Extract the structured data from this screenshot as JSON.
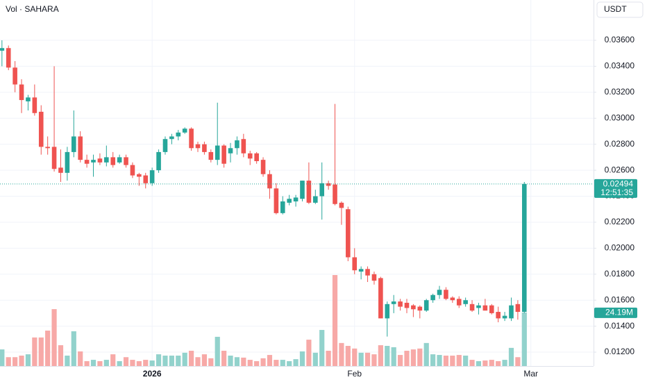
{
  "chart_data": {
    "type": "candlestick",
    "title": "Vol · SAHARA",
    "currency": "USDT",
    "up_color": "#26a69a",
    "down_color": "#ef5350",
    "open": [
      0.0352,
      0.0354,
      0.0339,
      0.0326,
      0.0313,
      0.0316,
      0.0305,
      0.0278,
      0.0278,
      0.0262,
      0.0258,
      0.0274,
      0.0286,
      0.0268,
      0.0266,
      0.0269,
      0.0266,
      0.027,
      0.0266,
      0.027,
      0.0264,
      0.0257,
      0.0256,
      0.025,
      0.026,
      0.0274,
      0.0284,
      0.0286,
      0.0289,
      0.0292,
      0.028,
      0.028,
      0.0274,
      0.0268,
      0.0279,
      0.0273,
      0.0277,
      0.0284,
      0.0273,
      0.0273,
      0.0268,
      0.0257,
      0.0246,
      0.0227,
      0.0235,
      0.0236,
      0.0238,
      0.0252,
      0.0235,
      0.024,
      0.025,
      0.0249,
      0.0235,
      0.023,
      0.0193,
      0.0182,
      0.0184,
      0.018,
      0.0177,
      0.0146,
      0.0157,
      0.0159,
      0.0158,
      0.0156,
      0.0155,
      0.0152,
      0.016,
      0.0164,
      0.0168,
      0.0162,
      0.0161,
      0.0157,
      0.0157,
      0.0154,
      0.0156,
      0.0156,
      0.0151,
      0.0146,
      0.0146,
      0.0157,
      0.0151
    ],
    "high": [
      0.036,
      0.0356,
      0.0344,
      0.033,
      0.0318,
      0.0326,
      0.031,
      0.0286,
      0.034,
      0.0276,
      0.0278,
      0.0306,
      0.029,
      0.0272,
      0.0272,
      0.0273,
      0.0279,
      0.0274,
      0.0272,
      0.0272,
      0.0266,
      0.0258,
      0.0258,
      0.0262,
      0.0276,
      0.0286,
      0.0288,
      0.0291,
      0.0293,
      0.0293,
      0.0282,
      0.0282,
      0.0276,
      0.0312,
      0.028,
      0.0281,
      0.0286,
      0.0288,
      0.0275,
      0.0274,
      0.027,
      0.026,
      0.025,
      0.024,
      0.0241,
      0.0241,
      0.0252,
      0.0266,
      0.0245,
      0.0266,
      0.0252,
      0.0311,
      0.0236,
      0.0232,
      0.02,
      0.0186,
      0.0186,
      0.0182,
      0.0178,
      0.0159,
      0.0164,
      0.0161,
      0.0161,
      0.0157,
      0.0156,
      0.0161,
      0.0165,
      0.0171,
      0.017,
      0.0163,
      0.0163,
      0.0162,
      0.016,
      0.0158,
      0.0161,
      0.0157,
      0.0155,
      0.0151,
      0.0162,
      0.016,
      0.0251
    ],
    "low": [
      0.034,
      0.0337,
      0.032,
      0.0304,
      0.0306,
      0.0302,
      0.0272,
      0.0272,
      0.0259,
      0.0251,
      0.0252,
      0.027,
      0.0266,
      0.0262,
      0.0255,
      0.0264,
      0.0263,
      0.0262,
      0.0265,
      0.0262,
      0.0254,
      0.0248,
      0.0246,
      0.0248,
      0.0258,
      0.0272,
      0.028,
      0.0283,
      0.0288,
      0.0275,
      0.0274,
      0.0272,
      0.0266,
      0.0264,
      0.0262,
      0.0266,
      0.0272,
      0.027,
      0.0264,
      0.0265,
      0.0255,
      0.0238,
      0.0226,
      0.0226,
      0.0233,
      0.0232,
      0.0236,
      0.0234,
      0.0234,
      0.0222,
      0.0245,
      0.0233,
      0.0218,
      0.019,
      0.018,
      0.0176,
      0.0174,
      0.0172,
      0.0146,
      0.0132,
      0.015,
      0.0152,
      0.015,
      0.0147,
      0.0146,
      0.0151,
      0.0158,
      0.0161,
      0.016,
      0.0158,
      0.0154,
      0.0155,
      0.0151,
      0.0149,
      0.0152,
      0.0149,
      0.0143,
      0.0144,
      0.0144,
      0.0145,
      0.015
    ],
    "close": [
      0.0354,
      0.0339,
      0.0326,
      0.0314,
      0.0316,
      0.0304,
      0.0278,
      0.0277,
      0.0261,
      0.0258,
      0.0274,
      0.0286,
      0.0268,
      0.0265,
      0.0268,
      0.0266,
      0.027,
      0.0264,
      0.027,
      0.0264,
      0.0256,
      0.0255,
      0.025,
      0.026,
      0.0274,
      0.0284,
      0.0286,
      0.0289,
      0.0292,
      0.0277,
      0.0277,
      0.0274,
      0.0268,
      0.0279,
      0.0265,
      0.0277,
      0.0283,
      0.0273,
      0.0269,
      0.0267,
      0.0257,
      0.0246,
      0.0227,
      0.0236,
      0.0238,
      0.0239,
      0.0252,
      0.0235,
      0.024,
      0.025,
      0.0248,
      0.0234,
      0.0231,
      0.0193,
      0.0183,
      0.0184,
      0.0179,
      0.0175,
      0.0146,
      0.0157,
      0.0159,
      0.0155,
      0.0154,
      0.0153,
      0.0152,
      0.016,
      0.0164,
      0.0168,
      0.0161,
      0.016,
      0.0156,
      0.016,
      0.0152,
      0.0156,
      0.0152,
      0.015,
      0.0146,
      0.0148,
      0.0156,
      0.0151,
      0.02494
    ],
    "volume": {
      "up_color": "#92d2cc",
      "down_color": "#f7a9a7",
      "values": [
        7.5,
        4,
        4,
        4.7,
        5.3,
        12.9,
        12.9,
        16,
        25.7,
        9.4,
        4.7,
        15.7,
        6.6,
        2.2,
        2.8,
        2.2,
        2.8,
        5.3,
        2.2,
        4,
        2.8,
        2.2,
        2.8,
        2.5,
        5.3,
        4.7,
        4.7,
        4.7,
        6,
        6.9,
        4,
        5.3,
        3.5,
        13.2,
        6.9,
        4.7,
        4,
        3.8,
        2.8,
        2.2,
        3.5,
        5,
        2.8,
        2.8,
        2.2,
        3.1,
        6.6,
        11.9,
        6,
        16.3,
        6.9,
        41.1,
        10.4,
        9.1,
        7.9,
        6,
        6,
        5.3,
        9.4,
        9.1,
        8.5,
        5,
        6.9,
        7.5,
        7.9,
        10.4,
        5.3,
        5,
        4.7,
        4.7,
        5,
        4.7,
        2.8,
        2.2,
        2.5,
        2.8,
        2.2,
        2.8,
        8.2,
        4,
        24.19
      ],
      "value_labels": [
        null,
        null,
        null,
        null,
        null,
        null,
        null,
        null,
        null,
        null,
        null,
        null,
        null,
        null,
        null,
        null,
        null,
        null,
        null,
        null,
        null,
        null,
        null,
        null,
        null,
        null,
        null,
        null,
        null,
        null,
        null,
        null,
        null,
        null,
        null,
        null,
        null,
        null,
        null,
        null,
        null,
        null,
        null,
        null,
        null,
        null,
        null,
        null,
        null,
        null,
        null,
        null,
        null,
        null,
        null,
        null,
        null,
        null,
        null,
        null,
        null,
        null,
        null,
        null,
        null,
        null,
        null,
        null,
        null,
        null,
        null,
        null,
        null,
        null,
        null,
        null,
        null,
        null,
        null,
        null,
        "24.19M"
      ]
    },
    "last_price": 0.02494,
    "countdown": "12:51:35",
    "ylim": [
      0.01104,
      0.0391
    ],
    "yticks": [
      {
        "value": 0.012,
        "label": "0.01200"
      },
      {
        "value": 0.014,
        "label": "0.01400"
      },
      {
        "value": 0.016,
        "label": "0.01600"
      },
      {
        "value": 0.018,
        "label": "0.01800"
      },
      {
        "value": 0.02,
        "label": "0.02000"
      },
      {
        "value": 0.022,
        "label": "0.02200"
      },
      {
        "value": 0.024,
        "label": "0.02400"
      },
      {
        "value": 0.026,
        "label": "0.02600"
      },
      {
        "value": 0.028,
        "label": "0.02800"
      },
      {
        "value": 0.03,
        "label": "0.03000"
      },
      {
        "value": 0.032,
        "label": "0.03200"
      },
      {
        "value": 0.034,
        "label": "0.03400"
      },
      {
        "value": 0.036,
        "label": "0.03600"
      }
    ],
    "xlim": [
      -0.3,
      90.6
    ],
    "xticks": [
      {
        "value": 23,
        "label": "2026"
      },
      {
        "value": 54,
        "label": "Feb"
      },
      {
        "value": 81,
        "label": "Mar"
      }
    ],
    "grid": true
  }
}
